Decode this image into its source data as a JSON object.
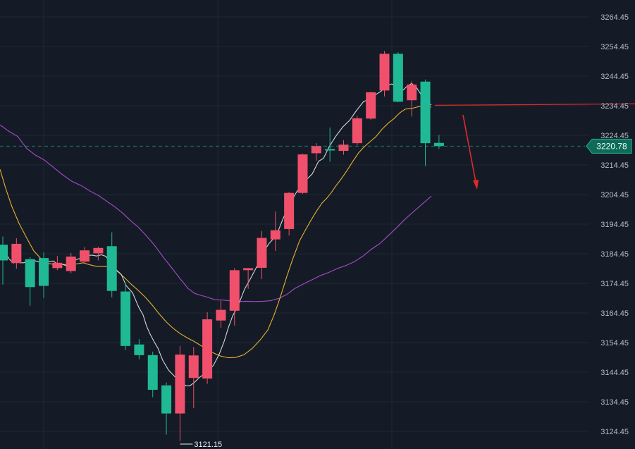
{
  "chart_data": {
    "type": "candlestick",
    "ylim": [
      3121.15,
      3266.0
    ],
    "yticks": [
      "3264.45",
      "3254.45",
      "3244.45",
      "3234.45",
      "3224.45",
      "3214.45",
      "3204.45",
      "3194.45",
      "3184.45",
      "3174.45",
      "3164.45",
      "3154.45",
      "3144.45",
      "3134.45",
      "3124.45"
    ],
    "current_price": "3220.78",
    "low_label": "3121.15",
    "candles": [
      {
        "o": 3187.5,
        "h": 3190.3,
        "l": 3174.0,
        "c": 3182.2
      },
      {
        "o": 3181.3,
        "h": 3189.7,
        "l": 3179.4,
        "c": 3187.8
      },
      {
        "o": 3182.6,
        "h": 3183.3,
        "l": 3166.9,
        "c": 3173.2
      },
      {
        "o": 3183.0,
        "h": 3184.9,
        "l": 3169.5,
        "c": 3173.6
      },
      {
        "o": 3179.6,
        "h": 3183.7,
        "l": 3178.9,
        "c": 3181.4
      },
      {
        "o": 3178.6,
        "h": 3184.7,
        "l": 3177.9,
        "c": 3183.5
      },
      {
        "o": 3181.8,
        "h": 3186.7,
        "l": 3181.1,
        "c": 3185.6
      },
      {
        "o": 3184.6,
        "h": 3186.8,
        "l": 3182.2,
        "c": 3186.4
      },
      {
        "o": 3187.0,
        "h": 3191.7,
        "l": 3169.7,
        "c": 3171.9
      },
      {
        "o": 3171.7,
        "h": 3174.6,
        "l": 3151.9,
        "c": 3153.3
      },
      {
        "o": 3153.8,
        "h": 3155.6,
        "l": 3148.8,
        "c": 3150.2
      },
      {
        "o": 3150.2,
        "h": 3151.4,
        "l": 3136.0,
        "c": 3138.5
      },
      {
        "o": 3140.0,
        "h": 3141.0,
        "l": 3123.4,
        "c": 3130.5
      },
      {
        "o": 3130.5,
        "h": 3153.3,
        "l": 3121.2,
        "c": 3150.4
      },
      {
        "o": 3142.5,
        "h": 3152.9,
        "l": 3132.3,
        "c": 3150.1
      },
      {
        "o": 3142.3,
        "h": 3164.7,
        "l": 3140.5,
        "c": 3162.3
      },
      {
        "o": 3161.9,
        "h": 3168.6,
        "l": 3159.4,
        "c": 3165.5
      },
      {
        "o": 3165.2,
        "h": 3179.6,
        "l": 3160.2,
        "c": 3178.9
      },
      {
        "o": 3178.9,
        "h": 3179.6,
        "l": 3172.6,
        "c": 3179.6
      },
      {
        "o": 3179.7,
        "h": 3192.1,
        "l": 3175.9,
        "c": 3189.8
      },
      {
        "o": 3189.3,
        "h": 3198.7,
        "l": 3185.4,
        "c": 3192.4
      },
      {
        "o": 3192.8,
        "h": 3205.3,
        "l": 3190.6,
        "c": 3205.0
      },
      {
        "o": 3205.0,
        "h": 3218.3,
        "l": 3204.7,
        "c": 3218.0
      },
      {
        "o": 3218.4,
        "h": 3221.8,
        "l": 3215.9,
        "c": 3220.8
      },
      {
        "o": 3219.8,
        "h": 3227.1,
        "l": 3215.5,
        "c": 3219.6
      },
      {
        "o": 3219.2,
        "h": 3222.8,
        "l": 3217.9,
        "c": 3221.3
      },
      {
        "o": 3221.8,
        "h": 3231.0,
        "l": 3221.1,
        "c": 3230.2
      },
      {
        "o": 3230.1,
        "h": 3239.2,
        "l": 3229.6,
        "c": 3239.0
      },
      {
        "o": 3239.6,
        "h": 3252.9,
        "l": 3237.6,
        "c": 3252.0
      },
      {
        "o": 3252.0,
        "h": 3252.5,
        "l": 3235.6,
        "c": 3235.8
      },
      {
        "o": 3236.3,
        "h": 3242.7,
        "l": 3230.8,
        "c": 3241.6
      },
      {
        "o": 3242.6,
        "h": 3243.3,
        "l": 3214.1,
        "c": 3221.8
      },
      {
        "o": 3221.9,
        "h": 3224.6,
        "l": 3219.9,
        "c": 3220.8
      }
    ],
    "ma_short": [
      [
        8,
        3184.7
      ],
      [
        13,
        3182.7
      ],
      [
        19,
        3181.3
      ],
      [
        23,
        3181.8
      ],
      [
        28,
        3181.4
      ],
      [
        34,
        3181.4
      ],
      [
        40,
        3182.3
      ],
      [
        46,
        3182.4
      ],
      [
        52,
        3181.9
      ],
      [
        58,
        3181.5
      ],
      [
        64,
        3181.4
      ],
      [
        70,
        3181.9
      ],
      [
        76,
        3182.0
      ],
      [
        82,
        3180.7
      ],
      [
        88,
        3180.9
      ],
      [
        94,
        3180.4
      ],
      [
        100,
        3180.6
      ],
      [
        106,
        3182.2
      ],
      [
        112,
        3182.8
      ],
      [
        118,
        3182.6
      ],
      [
        124,
        3183.8
      ],
      [
        130,
        3184.0
      ],
      [
        137,
        3183.7
      ],
      [
        144,
        3184.1
      ],
      [
        150,
        3183.6
      ],
      [
        157,
        3181.5
      ],
      [
        165,
        3179.0
      ],
      [
        172,
        3177.5
      ],
      [
        179,
        3173.7
      ],
      [
        188,
        3171.3
      ],
      [
        197,
        3166.3
      ],
      [
        203,
        3163.8
      ],
      [
        208,
        3160.0
      ],
      [
        213,
        3157.3
      ],
      [
        219,
        3154.6
      ],
      [
        224,
        3152.6
      ],
      [
        231,
        3148.4
      ],
      [
        239,
        3145.2
      ],
      [
        247,
        3143.2
      ],
      [
        256,
        3141.0
      ],
      [
        264,
        3139.9
      ],
      [
        269,
        3139.8
      ],
      [
        275,
        3140.8
      ],
      [
        283,
        3142.7
      ],
      [
        294,
        3144.5
      ],
      [
        303,
        3146.8
      ],
      [
        311,
        3150.5
      ],
      [
        318,
        3154.8
      ],
      [
        324,
        3159.5
      ],
      [
        330,
        3163.4
      ],
      [
        338,
        3167.0
      ],
      [
        347,
        3172.5
      ],
      [
        356,
        3176.3
      ],
      [
        365,
        3180.4
      ],
      [
        374,
        3185.2
      ],
      [
        382,
        3188.0
      ],
      [
        392,
        3190.6
      ],
      [
        402,
        3196.5
      ],
      [
        411,
        3201.2
      ],
      [
        421,
        3205.4
      ],
      [
        432,
        3208.8
      ],
      [
        443,
        3211.4
      ],
      [
        452,
        3215.7
      ],
      [
        459,
        3216.7
      ],
      [
        467,
        3220.6
      ],
      [
        476,
        3224.0
      ],
      [
        486,
        3227.2
      ],
      [
        496,
        3229.5
      ],
      [
        506,
        3232.9
      ],
      [
        516,
        3235.9
      ],
      [
        525,
        3236.6
      ],
      [
        533,
        3238.2
      ],
      [
        541,
        3239.4
      ],
      [
        549,
        3241.3
      ],
      [
        556,
        3241.8
      ],
      [
        564,
        3240.6
      ],
      [
        571,
        3239.5
      ],
      [
        577,
        3240.9
      ],
      [
        584,
        3242.0
      ],
      [
        591,
        3240.6
      ],
      [
        598,
        3238.0
      ],
      [
        605,
        3236.0
      ],
      [
        612,
        3234.7
      ]
    ],
    "ma_mid": [
      [
        0,
        3213.0
      ],
      [
        8,
        3206.6
      ],
      [
        17,
        3200.3
      ],
      [
        27,
        3194.7
      ],
      [
        38,
        3189.7
      ],
      [
        48,
        3185.4
      ],
      [
        58,
        3182.8
      ],
      [
        68,
        3181.2
      ],
      [
        78,
        3180.8
      ],
      [
        88,
        3180.9
      ],
      [
        98,
        3180.7
      ],
      [
        108,
        3181.0
      ],
      [
        118,
        3181.4
      ],
      [
        128,
        3180.7
      ],
      [
        137,
        3180.2
      ],
      [
        147,
        3180.2
      ],
      [
        157,
        3180.1
      ],
      [
        167,
        3178.4
      ],
      [
        176,
        3176.5
      ],
      [
        186,
        3174.2
      ],
      [
        195,
        3172.3
      ],
      [
        206,
        3169.8
      ],
      [
        216,
        3167.1
      ],
      [
        226,
        3164.1
      ],
      [
        236,
        3161.4
      ],
      [
        246,
        3159.2
      ],
      [
        256,
        3157.4
      ],
      [
        266,
        3156.0
      ],
      [
        275,
        3154.9
      ],
      [
        284,
        3153.6
      ],
      [
        293,
        3152.3
      ],
      [
        304,
        3150.8
      ],
      [
        313,
        3149.9
      ],
      [
        324,
        3149.3
      ],
      [
        334,
        3149.4
      ],
      [
        346,
        3150.3
      ],
      [
        358,
        3152.5
      ],
      [
        369,
        3155.3
      ],
      [
        380,
        3158.7
      ],
      [
        389,
        3163.8
      ],
      [
        398,
        3170.0
      ],
      [
        407,
        3176.8
      ],
      [
        415,
        3182.4
      ],
      [
        425,
        3188.8
      ],
      [
        433,
        3192.3
      ],
      [
        441,
        3195.7
      ],
      [
        449,
        3198.8
      ],
      [
        457,
        3201.6
      ],
      [
        464,
        3203.3
      ],
      [
        470,
        3205.1
      ],
      [
        477,
        3207.5
      ],
      [
        485,
        3210.0
      ],
      [
        493,
        3212.8
      ],
      [
        501,
        3215.8
      ],
      [
        509,
        3218.6
      ],
      [
        516,
        3220.4
      ],
      [
        525,
        3222.3
      ],
      [
        533,
        3223.9
      ],
      [
        542,
        3226.5
      ],
      [
        551,
        3228.6
      ],
      [
        559,
        3230.1
      ],
      [
        567,
        3232.0
      ],
      [
        575,
        3233.3
      ],
      [
        585,
        3233.6
      ],
      [
        595,
        3234.2
      ],
      [
        604,
        3234.0
      ],
      [
        612,
        3234.0
      ]
    ],
    "ma_long": [
      [
        0,
        3228.0
      ],
      [
        12,
        3225.9
      ],
      [
        25,
        3224.1
      ],
      [
        38,
        3220.0
      ],
      [
        50,
        3217.8
      ],
      [
        63,
        3216.1
      ],
      [
        76,
        3213.6
      ],
      [
        89,
        3211.1
      ],
      [
        102,
        3208.9
      ],
      [
        115,
        3207.5
      ],
      [
        128,
        3205.6
      ],
      [
        140,
        3204.1
      ],
      [
        152,
        3202.1
      ],
      [
        163,
        3200.3
      ],
      [
        174,
        3198.2
      ],
      [
        185,
        3195.7
      ],
      [
        196,
        3193.5
      ],
      [
        207,
        3190.7
      ],
      [
        219,
        3187.4
      ],
      [
        232,
        3183.2
      ],
      [
        244,
        3179.6
      ],
      [
        256,
        3175.9
      ],
      [
        267,
        3172.7
      ],
      [
        276,
        3171.1
      ],
      [
        285,
        3170.4
      ],
      [
        294,
        3169.8
      ],
      [
        305,
        3168.9
      ],
      [
        316,
        3168.8
      ],
      [
        328,
        3168.5
      ],
      [
        339,
        3168.3
      ],
      [
        350,
        3168.4
      ],
      [
        362,
        3168.3
      ],
      [
        373,
        3168.4
      ],
      [
        384,
        3168.6
      ],
      [
        396,
        3169.4
      ],
      [
        407,
        3170.7
      ],
      [
        418,
        3172.7
      ],
      [
        430,
        3174.2
      ],
      [
        442,
        3175.6
      ],
      [
        454,
        3177.0
      ],
      [
        467,
        3178.2
      ],
      [
        479,
        3179.5
      ],
      [
        491,
        3180.5
      ],
      [
        503,
        3181.8
      ],
      [
        516,
        3183.8
      ],
      [
        527,
        3186.0
      ],
      [
        539,
        3187.9
      ],
      [
        551,
        3190.6
      ],
      [
        563,
        3193.3
      ],
      [
        575,
        3196.2
      ],
      [
        586,
        3198.5
      ],
      [
        597,
        3200.8
      ],
      [
        612,
        3203.9
      ]
    ]
  },
  "colors": {
    "background": "#141b26",
    "grid": "#1e2734",
    "up": "#f0506b",
    "down": "#1fb996",
    "ma_short": "#d6d6d6",
    "ma_mid": "#e8b02e",
    "ma_long": "#a74bc9",
    "annotation": "#e02a2a",
    "current_price": "#1fb996"
  },
  "annotations": {
    "resistance_level": 3234.6,
    "arrow_direction": "down"
  }
}
